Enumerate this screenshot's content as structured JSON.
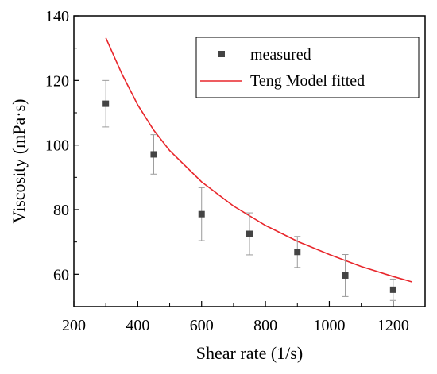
{
  "chart_data": {
    "type": "scatter",
    "xlabel": "Shear rate (1/s)",
    "ylabel": "Viscosity (mPa·s)",
    "xlim": [
      200,
      1300
    ],
    "ylim": [
      50,
      140
    ],
    "x_ticks": [
      200,
      400,
      600,
      800,
      1000,
      1200
    ],
    "y_ticks": [
      60,
      80,
      100,
      120,
      140
    ],
    "legend_position": "top-right",
    "series": [
      {
        "name": "measured",
        "kind": "scatter",
        "color": "#444444",
        "x": [
          300,
          450,
          600,
          750,
          900,
          1050,
          1200
        ],
        "y": [
          112.8,
          97.1,
          78.6,
          72.5,
          66.9,
          59.6,
          55.2
        ],
        "error": [
          7.2,
          6.1,
          8.2,
          6.5,
          4.8,
          6.5,
          3.3
        ]
      },
      {
        "name": "Teng Model fitted",
        "kind": "line",
        "color": "#e8262b",
        "x": [
          300,
          350,
          400,
          450,
          500,
          600,
          700,
          800,
          900,
          1000,
          1100,
          1200,
          1260
        ],
        "y": [
          133.2,
          122.1,
          112.4,
          104.6,
          98.3,
          88.6,
          81.1,
          75.1,
          70.2,
          66.1,
          62.4,
          59.3,
          57.6
        ]
      }
    ]
  }
}
